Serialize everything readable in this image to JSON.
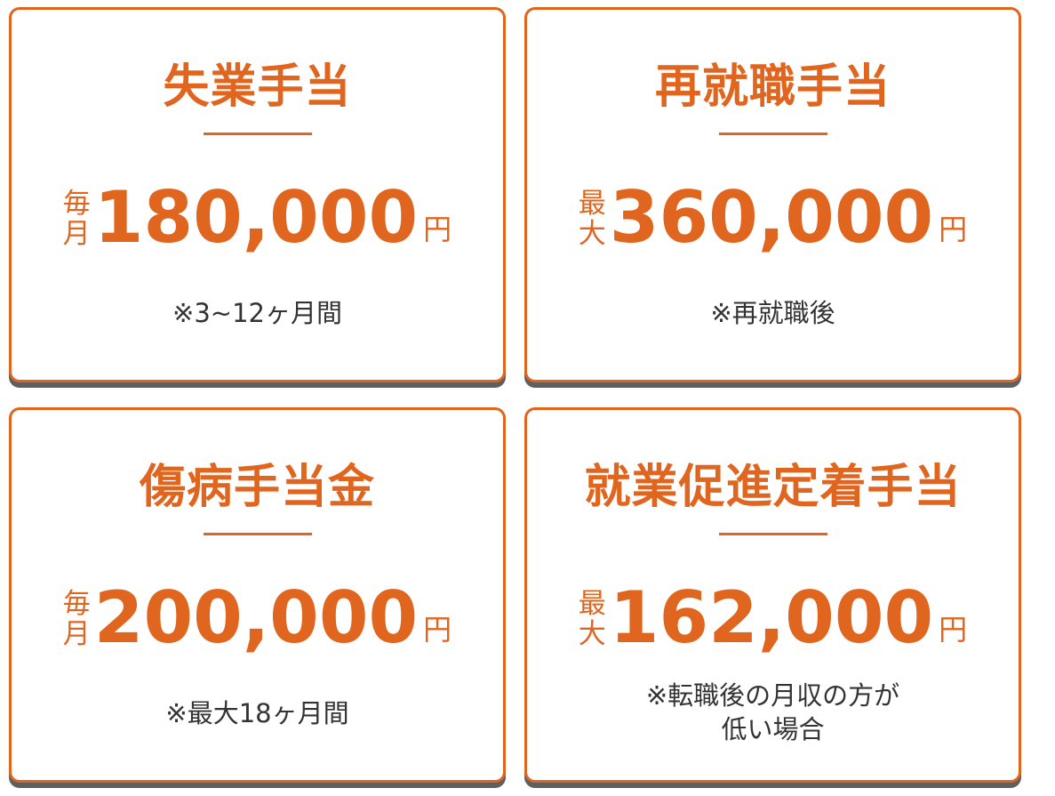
{
  "cards": [
    {
      "title": "失業手当",
      "prefix_top": "毎",
      "prefix_bottom": "月",
      "amount": "180,000",
      "unit": "円",
      "note_line1": "※3~12ヶ月間",
      "note_line2": ""
    },
    {
      "title": "再就職手当",
      "prefix_top": "最",
      "prefix_bottom": "大",
      "amount": "360,000",
      "unit": "円",
      "note_line1": "※再就職後",
      "note_line2": ""
    },
    {
      "title": "傷病手当金",
      "prefix_top": "毎",
      "prefix_bottom": "月",
      "amount": "200,000",
      "unit": "円",
      "note_line1": "※最大18ヶ月間",
      "note_line2": ""
    },
    {
      "title": "就業促進定着手当",
      "prefix_top": "最",
      "prefix_bottom": "大",
      "amount": "162,000",
      "unit": "円",
      "note_line1": "※転職後の月収の方が",
      "note_line2": "低い場合"
    }
  ],
  "colors": {
    "accent": "#e0661f",
    "note_text": "#333333",
    "shadow": "#5f5f5f"
  }
}
